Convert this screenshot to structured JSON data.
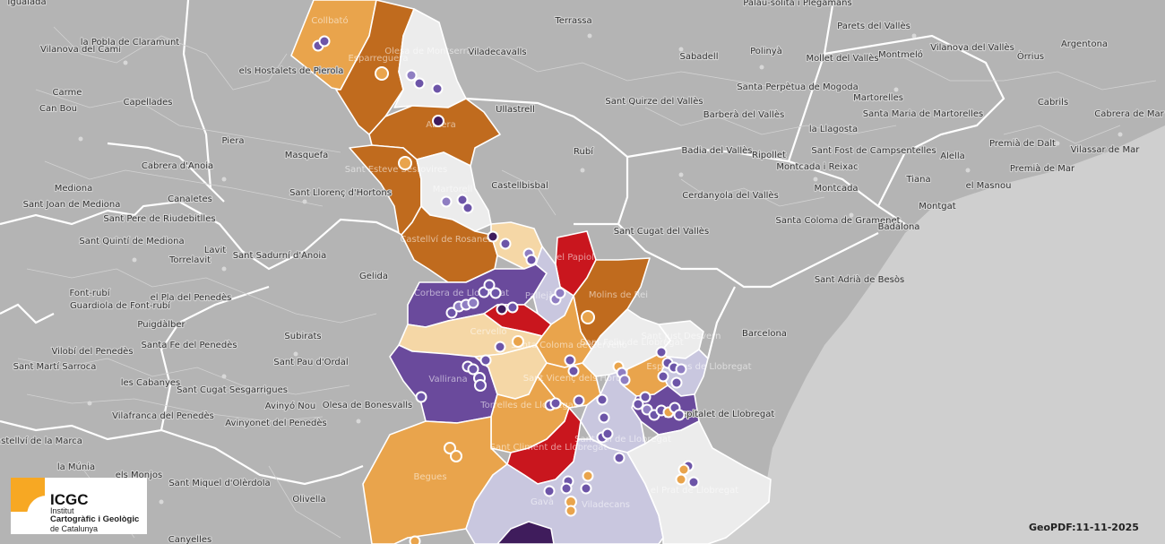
{
  "map": {
    "colors": {
      "background": "#b4b4b4",
      "sea": "#cfcfcf",
      "orange_dark": "#c06b1e",
      "orange": "#e9a44c",
      "peach": "#f5d7a6",
      "red": "#c9161e",
      "purple": "#6a4a9c",
      "lavender": "#c9c7df",
      "grey_light": "#ececec",
      "dark_purple": "#3f1c5c",
      "station_purple": "#6d55a8",
      "station_orange": "#e9a44c"
    },
    "place_labels": [
      "Igualada",
      "Collbató",
      "Olesa de Montserrat",
      "Terrassa",
      "Palau-solità i Plegamans",
      "Parets del Vallès",
      "Argentona",
      "Sabadell",
      "Polinyà",
      "Mollet del Vallès",
      "Montmeló",
      "Vilanova del Vallès",
      "Òrrius",
      "Viladecavalls",
      "Vilanova del Camí",
      "la Pobla de Claramunt",
      "els Hostalets de Pierola",
      "Santa Perpètua de Mogoda",
      "Martorelles",
      "Cabrils",
      "Carme",
      "Capellades",
      "Sant Quirze del Vallès",
      "Santa Maria de Martorelles",
      "Cabrera de Mar",
      "Can Bou",
      "Ullastrell",
      "Barberà del Vallès",
      "la Llagosta",
      "Piera",
      "Rubí",
      "Cabrera d'Anoia",
      "Masquefa",
      "Badia del Vallès",
      "Ripollet",
      "Montcada i Reixac",
      "Sant Fost de Campsentelles",
      "Alella",
      "Premià de Dalt",
      "Vilassar de Mar",
      "Premià de Mar",
      "Mediona",
      "Canaletes",
      "Sant Llorenç d'Hortons",
      "Castellbisbal",
      "Cerdanyola del Vallès",
      "Montcada",
      "Tiana",
      "el Masnou",
      "Sant Joan de Mediona",
      "Montgat",
      "Sant Pere de Riudebitlles",
      "Santa Coloma de Gramenet",
      "Badalona",
      "Sant Cugat del Vallès",
      "Sant Quintí de Mediona",
      "Lavit",
      "Torrelavit",
      "Sant Sadurní d'Anoia",
      "Gelida",
      "Sant Adrià de Besòs",
      "Font-rubí",
      "el Pla del Penedès",
      "Guardiola de Font-rubí",
      "Puigdàlber",
      "Barcelona",
      "Subirats",
      "Vilobí del Penedès",
      "Santa Fe del Penedès",
      "Sant Pau d'Ordal",
      "Sant Martí Sarroca",
      "les Cabanyes",
      "Sant Cugat Sesgarrigues",
      "Avinyó Nou",
      "Olesa de Bonesvalls",
      "l'Hospitalet de Llobregat",
      "Vilafranca del Penedès",
      "Avinyonet del Penedès",
      "Castellví de la Marca",
      "la Múnia",
      "els Monjos",
      "Sant Miquel d'Olèrdola",
      "Olivella",
      "Canyelles",
      "Esparreguera",
      "Abrera",
      "Sant Esteve Sesrovires",
      "Martorell",
      "Castellví de Rosanes",
      "el Papiol",
      "Molins de Rei",
      "Pallejà",
      "Cervelló",
      "Corbera de Llobregat",
      "Vallirana",
      "Torrelles de Llobregat",
      "Begues",
      "Sant Vicenç dels Horts",
      "Santa Coloma de Cervelló",
      "Sant Boi de Llobregat",
      "Sant Climent de Llobregat",
      "Gavà",
      "Viladecans",
      "el Prat de Llobregat",
      "Sant Just Desvern",
      "Sant Feliu de Llobregat",
      "Esplugues de Llobregat"
    ],
    "legend_marks": {
      "station_icon": "circle-marker-icon"
    }
  },
  "logo": {
    "acronym": "ICGC",
    "line1": "Institut",
    "line2": "Cartogràfic i Geològic",
    "line3": "de Catalunya"
  },
  "footer": {
    "date_stamp": "GeoPDF:11-11-2025"
  }
}
